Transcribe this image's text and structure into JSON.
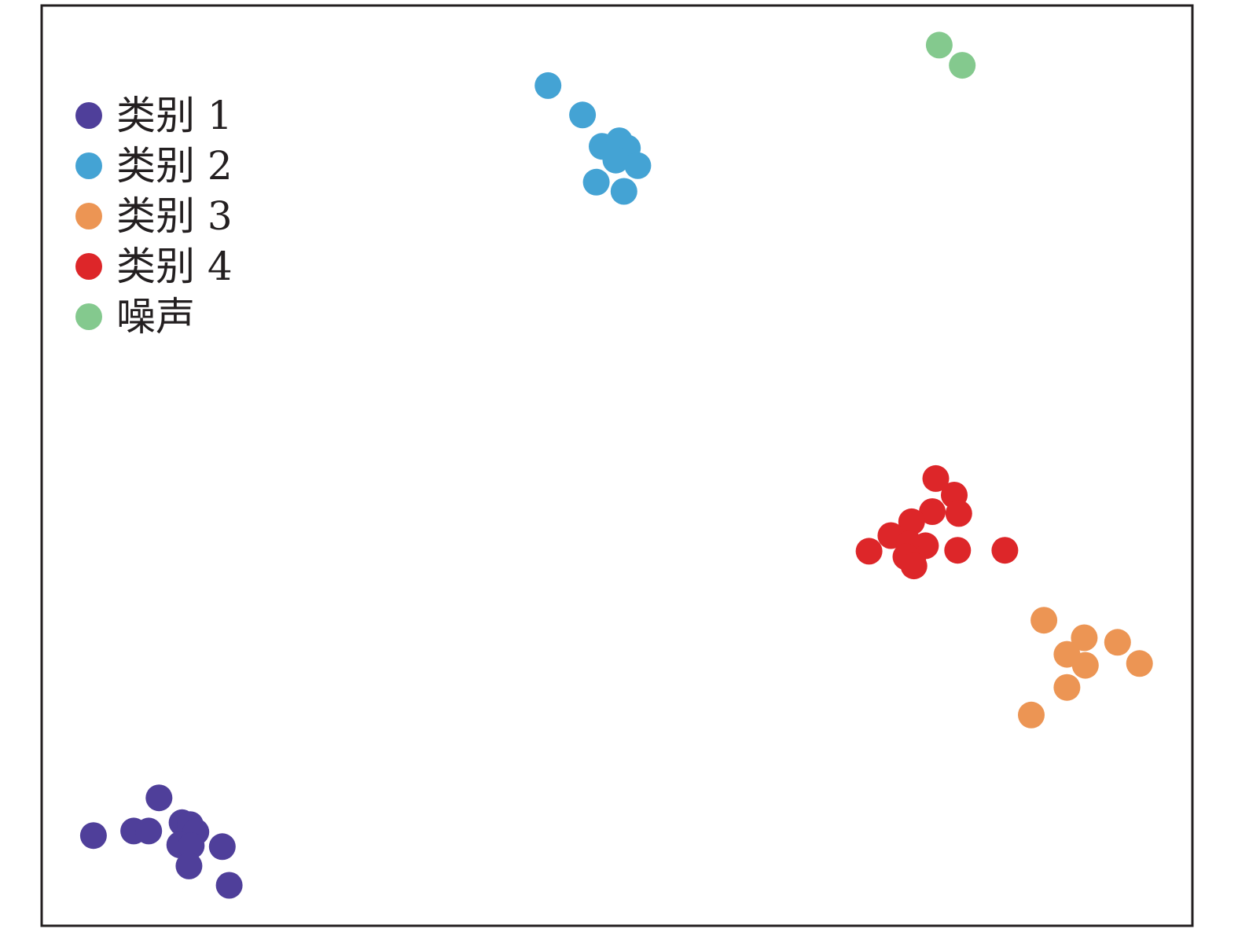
{
  "chart_data": {
    "type": "scatter",
    "title": "",
    "xlabel": "",
    "ylabel": "",
    "axis_ticks": "none",
    "frame": "black border",
    "legend_position": "top-left",
    "xlim": [
      0,
      100
    ],
    "ylim": [
      0,
      100
    ],
    "series": [
      {
        "name": "类别 1",
        "color": "#4f3f9a",
        "points": [
          [
            4.5,
            9.8
          ],
          [
            8.0,
            10.3
          ],
          [
            9.3,
            10.3
          ],
          [
            10.2,
            13.9
          ],
          [
            12.2,
            11.2
          ],
          [
            12.9,
            11.0
          ],
          [
            13.4,
            10.2
          ],
          [
            12.0,
            8.8
          ],
          [
            13.0,
            8.7
          ],
          [
            12.8,
            6.5
          ],
          [
            15.7,
            8.6
          ],
          [
            16.3,
            4.4
          ]
        ]
      },
      {
        "name": "类别 2",
        "color": "#44a3d4",
        "points": [
          [
            44.0,
            91.3
          ],
          [
            47.0,
            88.1
          ],
          [
            48.7,
            84.7
          ],
          [
            50.2,
            85.3
          ],
          [
            50.9,
            84.5
          ],
          [
            49.9,
            83.2
          ],
          [
            51.8,
            82.6
          ],
          [
            48.2,
            80.8
          ],
          [
            50.6,
            79.8
          ]
        ]
      },
      {
        "name": "类别 3",
        "color": "#ec9554",
        "points": [
          [
            87.1,
            33.2
          ],
          [
            90.6,
            31.3
          ],
          [
            93.5,
            30.8
          ],
          [
            89.1,
            29.5
          ],
          [
            90.7,
            28.3
          ],
          [
            95.4,
            28.5
          ],
          [
            89.1,
            25.9
          ],
          [
            86.0,
            22.9
          ]
        ]
      },
      {
        "name": "类别 4",
        "color": "#dd2629",
        "points": [
          [
            77.7,
            48.6
          ],
          [
            79.3,
            46.8
          ],
          [
            77.4,
            45.0
          ],
          [
            75.6,
            43.9
          ],
          [
            79.7,
            44.8
          ],
          [
            73.8,
            42.4
          ],
          [
            75.4,
            41.5
          ],
          [
            76.8,
            41.3
          ],
          [
            75.7,
            39.9
          ],
          [
            75.1,
            40.1
          ],
          [
            79.6,
            40.8
          ],
          [
            83.7,
            40.8
          ],
          [
            71.9,
            40.7
          ],
          [
            75.8,
            39.1
          ]
        ]
      },
      {
        "name": "噪声",
        "color": "#84c98e",
        "points": [
          [
            78.0,
            95.7
          ],
          [
            80.0,
            93.5
          ]
        ]
      }
    ]
  }
}
